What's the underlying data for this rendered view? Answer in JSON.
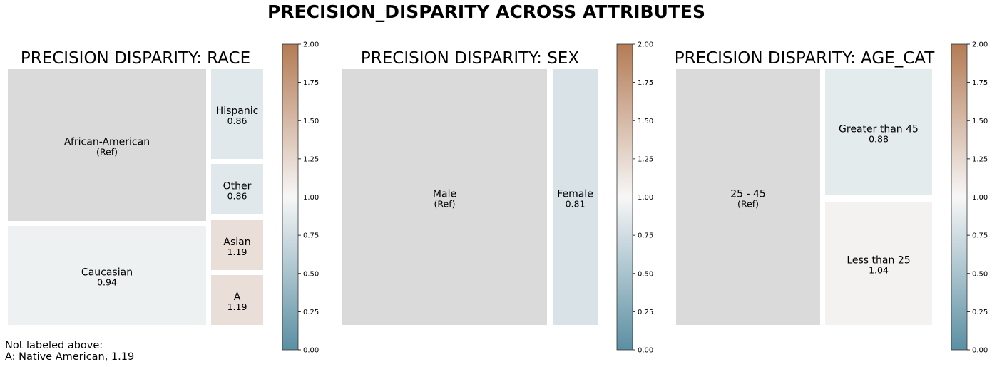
{
  "chart_data": {
    "type": "treemap",
    "title": "PRECISION_DISPARITY ACROSS ATTRIBUTES",
    "colorbar": {
      "range": [
        0,
        2
      ],
      "ticks": [
        "0.00",
        "0.25",
        "0.50",
        "0.75",
        "1.00",
        "1.25",
        "1.50",
        "1.75",
        "2.00"
      ],
      "low_color": "#5b8fa3",
      "mid_color": "#f7f7f7",
      "high_color": "#b47b55"
    },
    "ref_color": "#dadada",
    "panels": [
      {
        "title": "PRECISION DISPARITY: RACE",
        "groups": [
          {
            "label": "African-American",
            "text": "(Ref)",
            "value": 1.0,
            "ref": true
          },
          {
            "label": "Caucasian",
            "text": "0.94",
            "value": 0.94
          },
          {
            "label": "Hispanic",
            "text": "0.86",
            "value": 0.86
          },
          {
            "label": "Other",
            "text": "0.86",
            "value": 0.86
          },
          {
            "label": "Asian",
            "text": "1.19",
            "value": 1.19
          },
          {
            "label": "A",
            "text": "1.19",
            "value": 1.19
          }
        ],
        "note_lines": [
          "Not labeled above:",
          "A: Native American, 1.19"
        ]
      },
      {
        "title": "PRECISION DISPARITY: SEX",
        "groups": [
          {
            "label": "Male",
            "text": "(Ref)",
            "value": 1.0,
            "ref": true
          },
          {
            "label": "Female",
            "text": "0.81",
            "value": 0.81
          }
        ]
      },
      {
        "title": "PRECISION DISPARITY: AGE_CAT",
        "groups": [
          {
            "label": "25 - 45",
            "text": "(Ref)",
            "value": 1.0,
            "ref": true
          },
          {
            "label": "Greater than 45",
            "text": "0.88",
            "value": 0.88
          },
          {
            "label": "Less than 25",
            "text": "1.04",
            "value": 1.04
          }
        ]
      }
    ]
  }
}
